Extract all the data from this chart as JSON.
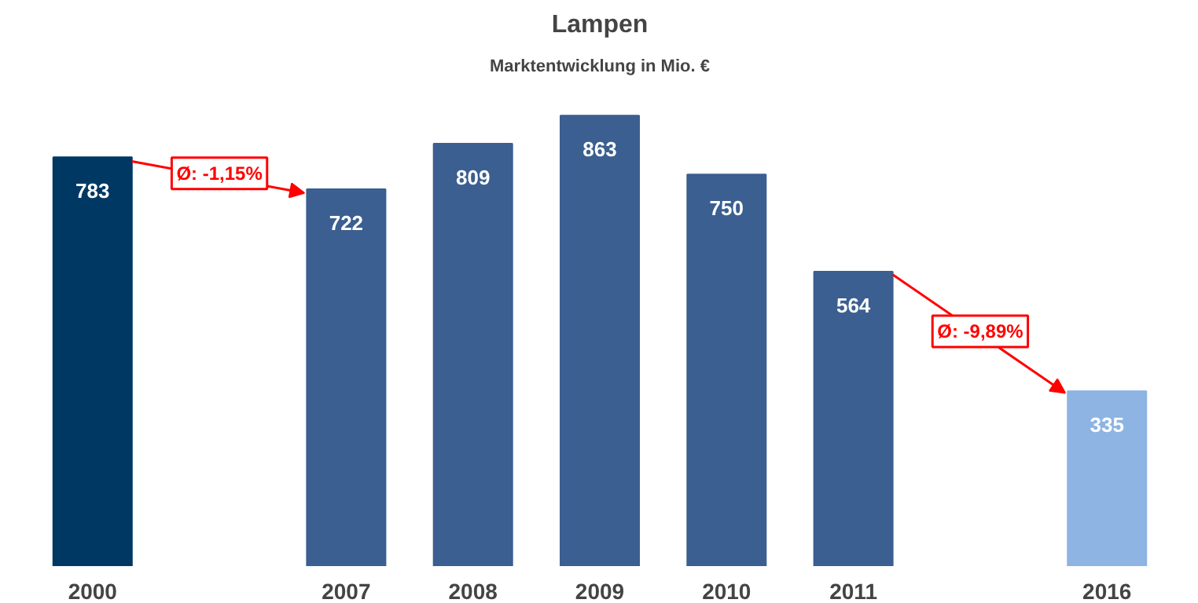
{
  "chart_data": {
    "type": "bar",
    "title": "Lampen",
    "subtitle": "Marktentwicklung in Mio. €",
    "categories": [
      "2000",
      null,
      "2007",
      "2008",
      "2009",
      "2010",
      "2011",
      null,
      "2016"
    ],
    "values": [
      783,
      null,
      722,
      809,
      863,
      750,
      564,
      null,
      335
    ],
    "colors": [
      "#003864",
      null,
      "#3a5f90",
      "#3a5f90",
      "#3a5f90",
      "#3a5f90",
      "#3a5f90",
      null,
      "#8db4e2"
    ],
    "data_labels": true,
    "grid": false,
    "annotations": [
      "Ø: -1,15%",
      "Ø: -9,89%"
    ]
  }
}
